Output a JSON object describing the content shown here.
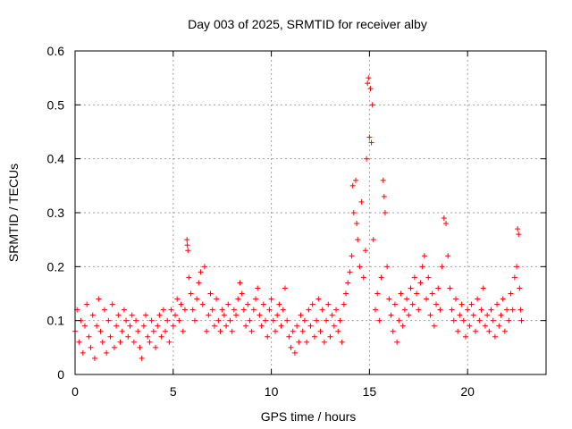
{
  "chart_data": {
    "type": "scatter",
    "title": "Day 003 of 2025, SRMTID for receiver alby",
    "xlabel": "GPS time / hours",
    "ylabel": "SRMTID / TECUs",
    "xlim": [
      0,
      24
    ],
    "ylim": [
      0,
      0.6
    ],
    "xticks": [
      0,
      5,
      10,
      15,
      20
    ],
    "xtick_labels": [
      "0",
      "5",
      "10",
      "15",
      "20"
    ],
    "yticks": [
      0,
      0.1,
      0.2,
      0.3,
      0.4,
      0.5,
      0.6
    ],
    "ytick_labels": [
      "0",
      "0.1",
      "0.2",
      "0.3",
      "0.4",
      "0.5",
      "0.6"
    ],
    "grid": true,
    "marker": "+",
    "color": "#ff0000",
    "series": [
      {
        "name": "SRMTID",
        "points": [
          [
            0.0,
            0.08
          ],
          [
            0.1,
            0.12
          ],
          [
            0.2,
            0.06
          ],
          [
            0.3,
            0.1
          ],
          [
            0.4,
            0.04
          ],
          [
            0.5,
            0.09
          ],
          [
            0.6,
            0.13
          ],
          [
            0.7,
            0.07
          ],
          [
            0.8,
            0.05
          ],
          [
            0.9,
            0.11
          ],
          [
            1.0,
            0.03
          ],
          [
            1.1,
            0.09
          ],
          [
            1.2,
            0.14
          ],
          [
            1.3,
            0.08
          ],
          [
            1.4,
            0.06
          ],
          [
            1.5,
            0.12
          ],
          [
            1.6,
            0.04
          ],
          [
            1.7,
            0.1
          ],
          [
            1.8,
            0.07
          ],
          [
            1.9,
            0.13
          ],
          [
            2.0,
            0.05
          ],
          [
            2.1,
            0.09
          ],
          [
            2.2,
            0.11
          ],
          [
            2.3,
            0.06
          ],
          [
            2.4,
            0.08
          ],
          [
            2.5,
            0.12
          ],
          [
            2.6,
            0.1
          ],
          [
            2.7,
            0.07
          ],
          [
            2.8,
            0.09
          ],
          [
            2.9,
            0.11
          ],
          [
            3.0,
            0.06
          ],
          [
            3.1,
            0.1
          ],
          [
            3.2,
            0.08
          ],
          [
            3.3,
            0.05
          ],
          [
            3.4,
            0.03
          ],
          [
            3.5,
            0.09
          ],
          [
            3.6,
            0.11
          ],
          [
            3.7,
            0.07
          ],
          [
            3.8,
            0.06
          ],
          [
            3.9,
            0.1
          ],
          [
            4.0,
            0.08
          ],
          [
            4.1,
            0.05
          ],
          [
            4.2,
            0.09
          ],
          [
            4.3,
            0.11
          ],
          [
            4.4,
            0.07
          ],
          [
            4.5,
            0.12
          ],
          [
            4.6,
            0.08
          ],
          [
            4.7,
            0.1
          ],
          [
            4.8,
            0.06
          ],
          [
            4.9,
            0.12
          ],
          [
            5.0,
            0.09
          ],
          [
            5.1,
            0.11
          ],
          [
            5.2,
            0.14
          ],
          [
            5.3,
            0.1
          ],
          [
            5.4,
            0.13
          ],
          [
            5.5,
            0.08
          ],
          [
            5.6,
            0.12
          ],
          [
            5.7,
            0.25
          ],
          [
            5.72,
            0.24
          ],
          [
            5.75,
            0.23
          ],
          [
            5.8,
            0.18
          ],
          [
            5.9,
            0.15
          ],
          [
            6.0,
            0.12
          ],
          [
            6.1,
            0.1
          ],
          [
            6.2,
            0.14
          ],
          [
            6.3,
            0.17
          ],
          [
            6.4,
            0.19
          ],
          [
            6.5,
            0.13
          ],
          [
            6.6,
            0.2
          ],
          [
            6.7,
            0.08
          ],
          [
            6.8,
            0.11
          ],
          [
            6.9,
            0.15
          ],
          [
            7.0,
            0.12
          ],
          [
            7.1,
            0.09
          ],
          [
            7.2,
            0.14
          ],
          [
            7.3,
            0.1
          ],
          [
            7.4,
            0.08
          ],
          [
            7.5,
            0.12
          ],
          [
            7.6,
            0.11
          ],
          [
            7.7,
            0.09
          ],
          [
            7.8,
            0.13
          ],
          [
            7.9,
            0.1
          ],
          [
            8.0,
            0.08
          ],
          [
            8.1,
            0.12
          ],
          [
            8.2,
            0.11
          ],
          [
            8.3,
            0.14
          ],
          [
            8.4,
            0.17
          ],
          [
            8.5,
            0.15
          ],
          [
            8.6,
            0.12
          ],
          [
            8.7,
            0.09
          ],
          [
            8.8,
            0.13
          ],
          [
            8.9,
            0.1
          ],
          [
            9.0,
            0.08
          ],
          [
            9.1,
            0.12
          ],
          [
            9.2,
            0.14
          ],
          [
            9.3,
            0.16
          ],
          [
            9.4,
            0.11
          ],
          [
            9.5,
            0.09
          ],
          [
            9.6,
            0.13
          ],
          [
            9.7,
            0.1
          ],
          [
            9.8,
            0.07
          ],
          [
            9.9,
            0.12
          ],
          [
            10.0,
            0.14
          ],
          [
            10.1,
            0.1
          ],
          [
            10.2,
            0.08
          ],
          [
            10.3,
            0.11
          ],
          [
            10.4,
            0.13
          ],
          [
            10.5,
            0.09
          ],
          [
            10.6,
            0.12
          ],
          [
            10.7,
            0.16
          ],
          [
            10.8,
            0.1
          ],
          [
            10.9,
            0.07
          ],
          [
            11.0,
            0.05
          ],
          [
            11.1,
            0.08
          ],
          [
            11.2,
            0.04
          ],
          [
            11.3,
            0.09
          ],
          [
            11.4,
            0.06
          ],
          [
            11.5,
            0.11
          ],
          [
            11.6,
            0.08
          ],
          [
            11.7,
            0.1
          ],
          [
            11.8,
            0.06
          ],
          [
            11.9,
            0.12
          ],
          [
            12.0,
            0.09
          ],
          [
            12.1,
            0.13
          ],
          [
            12.2,
            0.07
          ],
          [
            12.3,
            0.1
          ],
          [
            12.4,
            0.14
          ],
          [
            12.5,
            0.08
          ],
          [
            12.6,
            0.12
          ],
          [
            12.7,
            0.06
          ],
          [
            12.8,
            0.1
          ],
          [
            12.9,
            0.13
          ],
          [
            13.0,
            0.07
          ],
          [
            13.1,
            0.11
          ],
          [
            13.2,
            0.09
          ],
          [
            13.3,
            0.12
          ],
          [
            13.4,
            0.08
          ],
          [
            13.5,
            0.1
          ],
          [
            13.6,
            0.06
          ],
          [
            13.7,
            0.13
          ],
          [
            13.8,
            0.15
          ],
          [
            13.9,
            0.17
          ],
          [
            14.0,
            0.19
          ],
          [
            14.1,
            0.22
          ],
          [
            14.15,
            0.35
          ],
          [
            14.2,
            0.3
          ],
          [
            14.3,
            0.36
          ],
          [
            14.35,
            0.28
          ],
          [
            14.4,
            0.25
          ],
          [
            14.5,
            0.2
          ],
          [
            14.6,
            0.32
          ],
          [
            14.7,
            0.18
          ],
          [
            14.8,
            0.23
          ],
          [
            14.85,
            0.4
          ],
          [
            14.9,
            0.54
          ],
          [
            14.95,
            0.55
          ],
          [
            15.0,
            0.44
          ],
          [
            15.05,
            0.53
          ],
          [
            15.1,
            0.43
          ],
          [
            15.15,
            0.5
          ],
          [
            15.2,
            0.25
          ],
          [
            15.3,
            0.12
          ],
          [
            15.4,
            0.15
          ],
          [
            15.5,
            0.1
          ],
          [
            15.6,
            0.18
          ],
          [
            15.7,
            0.36
          ],
          [
            15.75,
            0.33
          ],
          [
            15.8,
            0.3
          ],
          [
            15.9,
            0.2
          ],
          [
            16.0,
            0.14
          ],
          [
            16.1,
            0.11
          ],
          [
            16.2,
            0.08
          ],
          [
            16.3,
            0.13
          ],
          [
            16.4,
            0.06
          ],
          [
            16.5,
            0.1
          ],
          [
            16.6,
            0.15
          ],
          [
            16.7,
            0.09
          ],
          [
            16.8,
            0.12
          ],
          [
            16.9,
            0.14
          ],
          [
            17.0,
            0.11
          ],
          [
            17.1,
            0.16
          ],
          [
            17.2,
            0.13
          ],
          [
            17.3,
            0.18
          ],
          [
            17.4,
            0.15
          ],
          [
            17.5,
            0.12
          ],
          [
            17.6,
            0.17
          ],
          [
            17.7,
            0.2
          ],
          [
            17.8,
            0.22
          ],
          [
            17.9,
            0.14
          ],
          [
            18.0,
            0.18
          ],
          [
            18.1,
            0.11
          ],
          [
            18.2,
            0.15
          ],
          [
            18.3,
            0.09
          ],
          [
            18.4,
            0.13
          ],
          [
            18.5,
            0.16
          ],
          [
            18.6,
            0.12
          ],
          [
            18.7,
            0.2
          ],
          [
            18.8,
            0.29
          ],
          [
            18.9,
            0.28
          ],
          [
            19.0,
            0.22
          ],
          [
            19.1,
            0.16
          ],
          [
            19.2,
            0.12
          ],
          [
            19.3,
            0.1
          ],
          [
            19.4,
            0.14
          ],
          [
            19.5,
            0.08
          ],
          [
            19.6,
            0.11
          ],
          [
            19.7,
            0.13
          ],
          [
            19.8,
            0.1
          ],
          [
            19.9,
            0.07
          ],
          [
            20.0,
            0.12
          ],
          [
            20.1,
            0.09
          ],
          [
            20.2,
            0.13
          ],
          [
            20.3,
            0.11
          ],
          [
            20.4,
            0.08
          ],
          [
            20.5,
            0.14
          ],
          [
            20.6,
            0.1
          ],
          [
            20.7,
            0.12
          ],
          [
            20.8,
            0.16
          ],
          [
            20.9,
            0.09
          ],
          [
            21.0,
            0.11
          ],
          [
            21.1,
            0.08
          ],
          [
            21.2,
            0.12
          ],
          [
            21.3,
            0.1
          ],
          [
            21.4,
            0.07
          ],
          [
            21.5,
            0.13
          ],
          [
            21.6,
            0.09
          ],
          [
            21.7,
            0.11
          ],
          [
            21.8,
            0.14
          ],
          [
            21.9,
            0.08
          ],
          [
            22.0,
            0.12
          ],
          [
            22.1,
            0.1
          ],
          [
            22.2,
            0.15
          ],
          [
            22.3,
            0.12
          ],
          [
            22.4,
            0.18
          ],
          [
            22.5,
            0.2
          ],
          [
            22.55,
            0.27
          ],
          [
            22.6,
            0.26
          ],
          [
            22.65,
            0.16
          ],
          [
            22.7,
            0.12
          ],
          [
            22.75,
            0.1
          ]
        ]
      }
    ]
  }
}
